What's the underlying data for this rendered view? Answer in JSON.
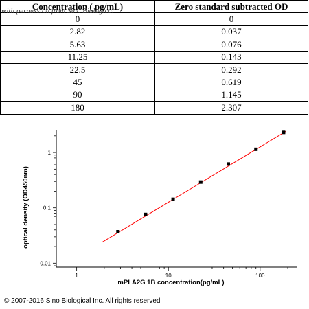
{
  "table": {
    "headers": [
      "Concentration ( pg/mL)",
      "Zero standard subtracted OD"
    ],
    "rows": [
      [
        "0",
        "0"
      ],
      [
        "2.82",
        "0.037"
      ],
      [
        "5.63",
        "0.076"
      ],
      [
        "11.25",
        "0.143"
      ],
      [
        "22.5",
        "0.292"
      ],
      [
        "45",
        "0.619"
      ],
      [
        "90",
        "1.145"
      ],
      [
        "180",
        "2.307"
      ]
    ]
  },
  "watermark": "with permission from Sino Biological",
  "copyright": "© 2007-2016 Sino Biological Inc. All rights reserved",
  "chart_data": {
    "type": "scatter",
    "title": "",
    "xlabel": "mPLA2G 1B concentration(pg/mL)",
    "ylabel": "optical density (OD450nm)",
    "xscale": "log",
    "yscale": "log",
    "xlim": [
      0.6,
      250
    ],
    "ylim": [
      0.0085,
      2.5
    ],
    "xticks": [
      1,
      10,
      100
    ],
    "yticks": [
      0.01,
      0.1,
      1
    ],
    "grid": false,
    "legend": "none",
    "colors": {
      "points": "#000000",
      "fit_line": "#ff0000"
    },
    "points": {
      "x": [
        2.82,
        5.63,
        11.25,
        22.5,
        45,
        90,
        180
      ],
      "y": [
        0.037,
        0.076,
        0.143,
        0.292,
        0.619,
        1.145,
        2.307
      ]
    },
    "fit_line": {
      "x": [
        1.9,
        190
      ],
      "y": [
        0.024,
        2.4
      ]
    }
  }
}
